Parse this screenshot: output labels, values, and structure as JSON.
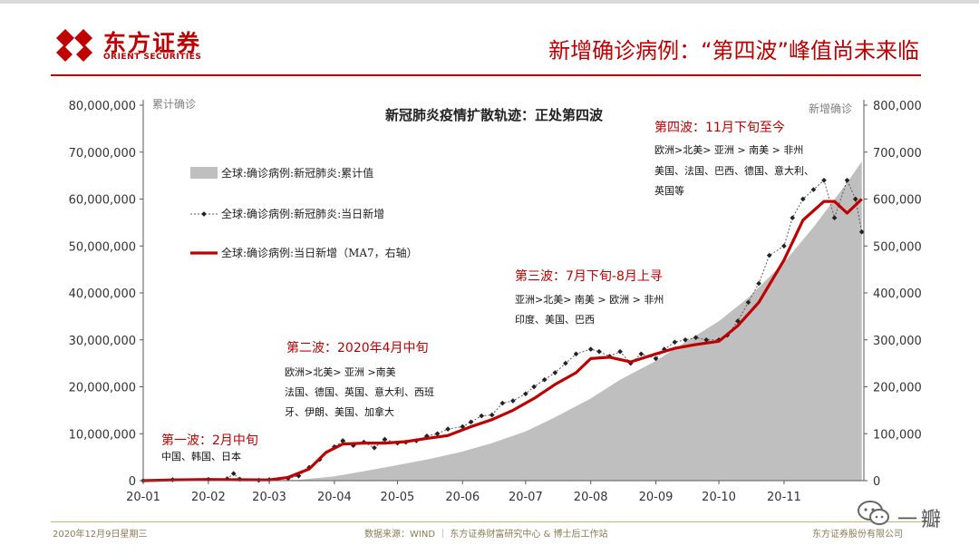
{
  "header": {
    "logo_cn": "东方证券",
    "logo_en": "ORIENT SECURITIES",
    "title": "新增确诊病例：“第四波”峰值尚未来临"
  },
  "footer": {
    "date": "2020年12月9日星期三",
    "source": "数据来源：WIND ｜ 东方证券财富研究中心 & 博士后工作站",
    "company": "东方证券股份有限公司"
  },
  "watermark": {
    "text": "一瓣"
  },
  "colors": {
    "brand": "#c00000",
    "area": "#bfbfbf",
    "daily": "#595959",
    "ma7": "#c00000"
  },
  "chart_data": {
    "type": "line",
    "title": "新冠肺炎疫情扩散轨迹：正处第四波",
    "left_axis_label": "累计确诊",
    "right_axis_label": "新增确诊",
    "left_ylim": [
      0,
      80000000
    ],
    "right_ylim": [
      0,
      800000
    ],
    "left_ticks": [
      "80,000,000",
      "70,000,000",
      "60,000,000",
      "50,000,000",
      "40,000,000",
      "30,000,000",
      "20,000,000",
      "10,000,000",
      "0"
    ],
    "right_ticks": [
      "800,000",
      "700,000",
      "600,000",
      "500,000",
      "400,000",
      "300,000",
      "200,000",
      "100,000",
      "0"
    ],
    "x_ticks": [
      "20-01",
      "20-02",
      "20-03",
      "20-04",
      "20-05",
      "20-06",
      "20-07",
      "20-08",
      "20-09",
      "20-10",
      "20-11"
    ],
    "legend_placement": "top-left",
    "grid": false,
    "series": [
      {
        "name": "全球:确诊病例:新冠肺炎:累计值",
        "axis": "left",
        "style": "area",
        "x": [
          "2020-01-01",
          "2020-02-01",
          "2020-03-01",
          "2020-03-15",
          "2020-04-01",
          "2020-04-15",
          "2020-05-01",
          "2020-05-15",
          "2020-06-01",
          "2020-06-15",
          "2020-07-01",
          "2020-07-15",
          "2020-08-01",
          "2020-08-15",
          "2020-09-01",
          "2020-09-15",
          "2020-10-01",
          "2020-10-15",
          "2020-11-01",
          "2020-11-15",
          "2020-12-01",
          "2020-12-08"
        ],
        "y": [
          0,
          10000,
          90000,
          170000,
          900000,
          2000000,
          3300000,
          4500000,
          6200000,
          8000000,
          10500000,
          13500000,
          17500000,
          21500000,
          25500000,
          29500000,
          34000000,
          39000000,
          46500000,
          54000000,
          63500000,
          68000000
        ]
      },
      {
        "name": "全球:确诊病例:新冠肺炎:当日新增",
        "axis": "right",
        "style": "dotted-markers",
        "x": [
          "2020-01-01",
          "2020-01-15",
          "2020-02-01",
          "2020-02-10",
          "2020-02-13",
          "2020-02-16",
          "2020-02-25",
          "2020-03-01",
          "2020-03-10",
          "2020-03-15",
          "2020-03-20",
          "2020-03-25",
          "2020-04-01",
          "2020-04-05",
          "2020-04-10",
          "2020-04-15",
          "2020-04-20",
          "2020-04-25",
          "2020-05-01",
          "2020-05-05",
          "2020-05-10",
          "2020-05-15",
          "2020-05-20",
          "2020-05-25",
          "2020-06-01",
          "2020-06-05",
          "2020-06-10",
          "2020-06-15",
          "2020-06-20",
          "2020-06-25",
          "2020-07-01",
          "2020-07-05",
          "2020-07-10",
          "2020-07-15",
          "2020-07-20",
          "2020-07-25",
          "2020-08-01",
          "2020-08-05",
          "2020-08-10",
          "2020-08-15",
          "2020-08-20",
          "2020-08-25",
          "2020-09-01",
          "2020-09-05",
          "2020-09-10",
          "2020-09-15",
          "2020-09-20",
          "2020-09-25",
          "2020-10-01",
          "2020-10-05",
          "2020-10-10",
          "2020-10-15",
          "2020-10-20",
          "2020-10-25",
          "2020-11-01",
          "2020-11-05",
          "2020-11-10",
          "2020-11-15",
          "2020-11-20",
          "2020-11-25",
          "2020-12-01",
          "2020-12-05",
          "2020-12-08"
        ],
        "y": [
          50,
          2000,
          2500,
          4000,
          15000,
          3000,
          800,
          2000,
          5000,
          10000,
          28000,
          45000,
          72000,
          85000,
          75000,
          82000,
          70000,
          88000,
          80000,
          82000,
          85000,
          95000,
          100000,
          110000,
          115000,
          125000,
          138000,
          140000,
          165000,
          170000,
          185000,
          200000,
          215000,
          230000,
          250000,
          270000,
          280000,
          275000,
          265000,
          275000,
          250000,
          270000,
          260000,
          280000,
          295000,
          300000,
          305000,
          300000,
          300000,
          310000,
          340000,
          380000,
          420000,
          480000,
          500000,
          560000,
          600000,
          620000,
          640000,
          560000,
          640000,
          600000,
          530000
        ]
      },
      {
        "name": "全球:确诊病例:当日新增（MA7，右轴）",
        "axis": "right",
        "style": "line",
        "x": [
          "2020-01-01",
          "2020-01-15",
          "2020-02-01",
          "2020-02-15",
          "2020-03-01",
          "2020-03-10",
          "2020-03-20",
          "2020-03-28",
          "2020-04-05",
          "2020-04-15",
          "2020-04-25",
          "2020-05-05",
          "2020-05-15",
          "2020-05-25",
          "2020-06-05",
          "2020-06-15",
          "2020-06-25",
          "2020-07-05",
          "2020-07-15",
          "2020-07-25",
          "2020-08-01",
          "2020-08-10",
          "2020-08-20",
          "2020-09-01",
          "2020-09-10",
          "2020-09-20",
          "2020-10-01",
          "2020-10-10",
          "2020-10-20",
          "2020-11-01",
          "2020-11-10",
          "2020-11-20",
          "2020-11-25",
          "2020-12-01",
          "2020-12-08"
        ],
        "y": [
          0,
          1500,
          2500,
          2000,
          1500,
          7000,
          25000,
          60000,
          78000,
          80000,
          80000,
          83000,
          90000,
          96000,
          115000,
          130000,
          150000,
          175000,
          205000,
          230000,
          260000,
          263000,
          253000,
          270000,
          282000,
          290000,
          297000,
          330000,
          380000,
          470000,
          555000,
          595000,
          595000,
          570000,
          600000
        ]
      }
    ],
    "annotations": [
      {
        "title": "第一波：2月中旬",
        "lines": [
          "中国、韩国、日本"
        ]
      },
      {
        "title": "第二波：2020年4月中旬",
        "lines": [
          "欧洲>北美> 亚洲 >南美",
          "法国、德国、英国、意大利、西班",
          "牙、伊朗、美国、加拿大"
        ]
      },
      {
        "title": "第三波：7月下旬-8月上寻",
        "lines": [
          "亚洲>北美> 南美 > 欧洲 > 非州",
          "印度、美国、巴西"
        ]
      },
      {
        "title": "第四波：11月下旬至今",
        "lines": [
          "欧洲>北美> 亚洲 > 南美 > 非州",
          "美国、法国、巴西、德国、意大利、",
          "英国等"
        ]
      }
    ]
  }
}
